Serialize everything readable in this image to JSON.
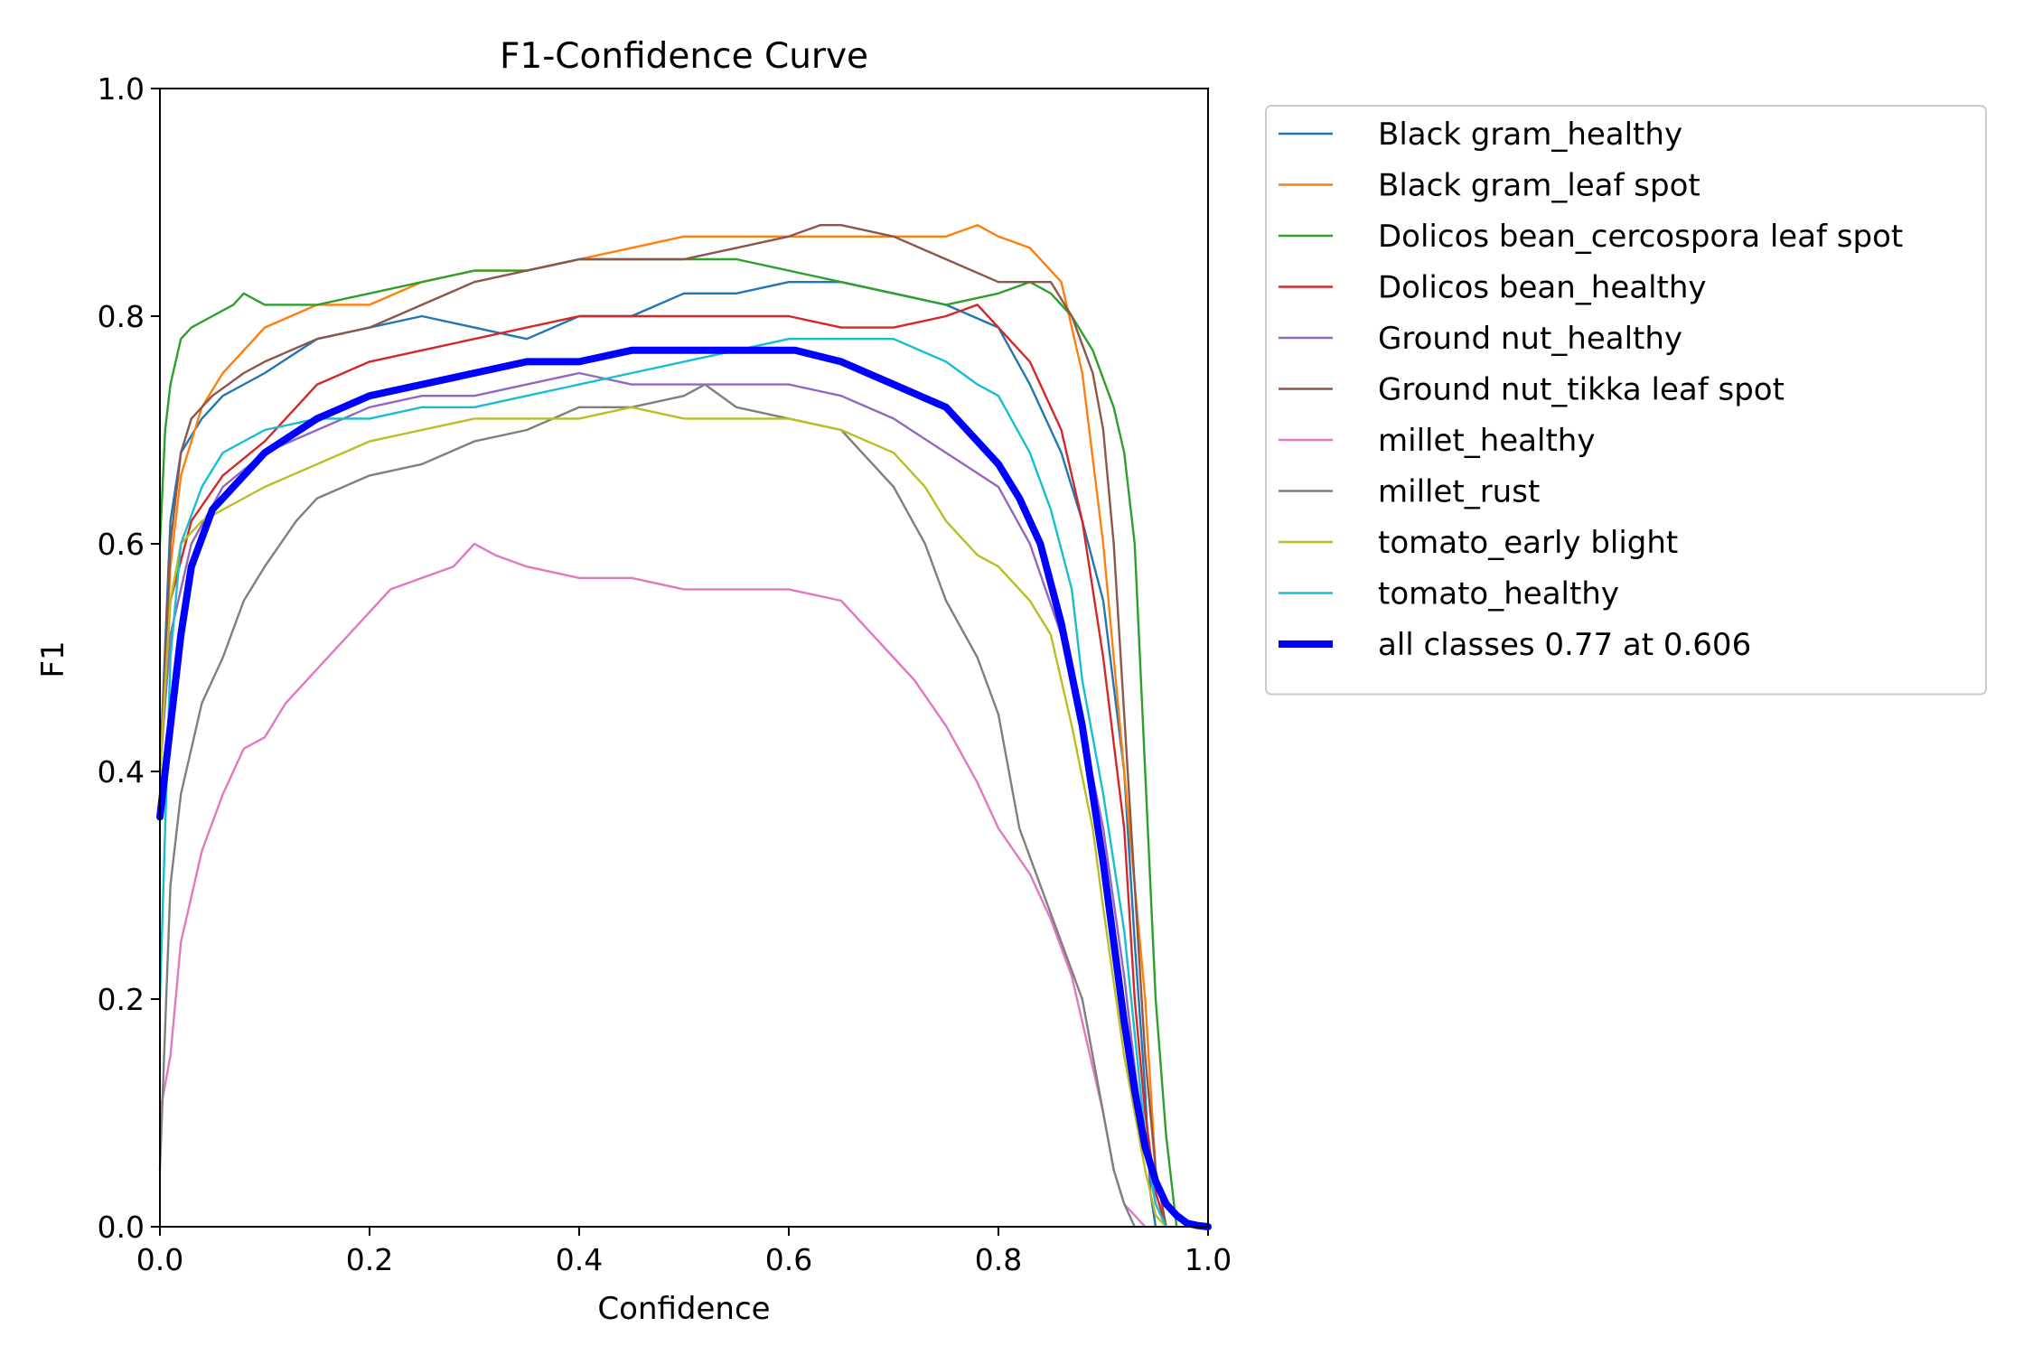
{
  "chart_data": {
    "type": "line",
    "title": "F1-Confidence Curve",
    "xlabel": "Confidence",
    "ylabel": "F1",
    "xlim": [
      0,
      1
    ],
    "ylim": [
      0,
      1
    ],
    "xticks": [
      "0.0",
      "0.2",
      "0.4",
      "0.6",
      "0.8",
      "1.0"
    ],
    "yticks": [
      "0.0",
      "0.2",
      "0.4",
      "0.6",
      "0.8",
      "1.0"
    ],
    "grid": false,
    "legend_position": "outside-right",
    "series": [
      {
        "name": "Black gram_healthy",
        "color": "#1f77b4",
        "x": [
          0,
          0.01,
          0.02,
          0.04,
          0.06,
          0.1,
          0.15,
          0.2,
          0.25,
          0.3,
          0.35,
          0.4,
          0.45,
          0.5,
          0.55,
          0.6,
          0.65,
          0.7,
          0.75,
          0.8,
          0.83,
          0.86,
          0.88,
          0.9,
          0.92,
          0.93,
          0.94,
          0.945,
          0.95
        ],
        "y": [
          0.4,
          0.62,
          0.68,
          0.71,
          0.73,
          0.75,
          0.78,
          0.79,
          0.8,
          0.79,
          0.78,
          0.8,
          0.8,
          0.82,
          0.82,
          0.83,
          0.83,
          0.82,
          0.81,
          0.79,
          0.74,
          0.68,
          0.62,
          0.55,
          0.4,
          0.25,
          0.12,
          0.03,
          0.0
        ]
      },
      {
        "name": "Black gram_leaf spot",
        "color": "#ff7f0e",
        "x": [
          0,
          0.01,
          0.02,
          0.04,
          0.06,
          0.1,
          0.15,
          0.2,
          0.25,
          0.3,
          0.35,
          0.4,
          0.45,
          0.5,
          0.55,
          0.6,
          0.65,
          0.7,
          0.75,
          0.78,
          0.8,
          0.83,
          0.86,
          0.88,
          0.9,
          0.92,
          0.94,
          0.95,
          0.96
        ],
        "y": [
          0.4,
          0.58,
          0.66,
          0.72,
          0.75,
          0.79,
          0.81,
          0.81,
          0.83,
          0.84,
          0.84,
          0.85,
          0.86,
          0.87,
          0.87,
          0.87,
          0.87,
          0.87,
          0.87,
          0.88,
          0.87,
          0.86,
          0.83,
          0.75,
          0.6,
          0.4,
          0.2,
          0.05,
          0.0
        ]
      },
      {
        "name": "Dolicos bean_cercospora leaf spot",
        "color": "#2ca02c",
        "x": [
          0,
          0.005,
          0.01,
          0.015,
          0.02,
          0.03,
          0.05,
          0.07,
          0.08,
          0.1,
          0.15,
          0.2,
          0.25,
          0.3,
          0.35,
          0.4,
          0.45,
          0.5,
          0.55,
          0.6,
          0.65,
          0.7,
          0.75,
          0.8,
          0.83,
          0.85,
          0.87,
          0.89,
          0.91,
          0.92,
          0.93,
          0.94,
          0.95,
          0.96,
          0.97
        ],
        "y": [
          0.6,
          0.7,
          0.74,
          0.76,
          0.78,
          0.79,
          0.8,
          0.81,
          0.82,
          0.81,
          0.81,
          0.82,
          0.83,
          0.84,
          0.84,
          0.85,
          0.85,
          0.85,
          0.85,
          0.84,
          0.83,
          0.82,
          0.81,
          0.82,
          0.83,
          0.82,
          0.8,
          0.77,
          0.72,
          0.68,
          0.6,
          0.4,
          0.2,
          0.08,
          0.0
        ]
      },
      {
        "name": "Dolicos bean_healthy",
        "color": "#d62728",
        "x": [
          0,
          0.01,
          0.03,
          0.06,
          0.1,
          0.13,
          0.15,
          0.2,
          0.25,
          0.3,
          0.35,
          0.4,
          0.45,
          0.5,
          0.55,
          0.6,
          0.65,
          0.7,
          0.75,
          0.78,
          0.8,
          0.83,
          0.86,
          0.88,
          0.9,
          0.92,
          0.93,
          0.94,
          0.95,
          0.96
        ],
        "y": [
          0.4,
          0.55,
          0.62,
          0.66,
          0.69,
          0.72,
          0.74,
          0.76,
          0.77,
          0.78,
          0.79,
          0.8,
          0.8,
          0.8,
          0.8,
          0.8,
          0.79,
          0.79,
          0.8,
          0.81,
          0.79,
          0.76,
          0.7,
          0.62,
          0.5,
          0.35,
          0.2,
          0.1,
          0.03,
          0.0
        ]
      },
      {
        "name": "Ground nut_healthy",
        "color": "#9467bd",
        "x": [
          0,
          0.01,
          0.03,
          0.06,
          0.1,
          0.15,
          0.2,
          0.25,
          0.3,
          0.35,
          0.4,
          0.45,
          0.5,
          0.55,
          0.6,
          0.65,
          0.7,
          0.75,
          0.8,
          0.83,
          0.86,
          0.88,
          0.9,
          0.92,
          0.93,
          0.94,
          0.95,
          0.96
        ],
        "y": [
          0.4,
          0.52,
          0.6,
          0.65,
          0.68,
          0.7,
          0.72,
          0.73,
          0.73,
          0.74,
          0.75,
          0.74,
          0.74,
          0.74,
          0.74,
          0.73,
          0.71,
          0.68,
          0.65,
          0.6,
          0.52,
          0.44,
          0.35,
          0.22,
          0.14,
          0.07,
          0.02,
          0.0
        ]
      },
      {
        "name": "Ground nut_tikka leaf spot",
        "color": "#8c564b",
        "x": [
          0,
          0.01,
          0.02,
          0.03,
          0.05,
          0.08,
          0.1,
          0.15,
          0.2,
          0.25,
          0.3,
          0.35,
          0.4,
          0.45,
          0.5,
          0.55,
          0.6,
          0.63,
          0.65,
          0.7,
          0.75,
          0.8,
          0.83,
          0.85,
          0.87,
          0.89,
          0.9,
          0.91,
          0.92,
          0.93,
          0.94,
          0.95,
          0.96
        ],
        "y": [
          0.4,
          0.6,
          0.68,
          0.71,
          0.73,
          0.75,
          0.76,
          0.78,
          0.79,
          0.81,
          0.83,
          0.84,
          0.85,
          0.85,
          0.85,
          0.86,
          0.87,
          0.88,
          0.88,
          0.87,
          0.85,
          0.83,
          0.83,
          0.83,
          0.8,
          0.75,
          0.7,
          0.6,
          0.45,
          0.3,
          0.15,
          0.05,
          0.0
        ]
      },
      {
        "name": "millet_healthy",
        "color": "#e377c2",
        "x": [
          0,
          0.01,
          0.02,
          0.04,
          0.06,
          0.08,
          0.1,
          0.12,
          0.15,
          0.18,
          0.2,
          0.22,
          0.25,
          0.28,
          0.3,
          0.32,
          0.35,
          0.4,
          0.45,
          0.5,
          0.55,
          0.6,
          0.65,
          0.68,
          0.7,
          0.72,
          0.75,
          0.78,
          0.8,
          0.83,
          0.85,
          0.87,
          0.88,
          0.89,
          0.9,
          0.91,
          0.92,
          0.93,
          0.94
        ],
        "y": [
          0.1,
          0.15,
          0.25,
          0.33,
          0.38,
          0.42,
          0.43,
          0.46,
          0.49,
          0.52,
          0.54,
          0.56,
          0.57,
          0.58,
          0.6,
          0.59,
          0.58,
          0.57,
          0.57,
          0.56,
          0.56,
          0.56,
          0.55,
          0.52,
          0.5,
          0.48,
          0.44,
          0.39,
          0.35,
          0.31,
          0.27,
          0.22,
          0.18,
          0.14,
          0.1,
          0.05,
          0.02,
          0.01,
          0.0
        ]
      },
      {
        "name": "millet_rust",
        "color": "#7f7f7f",
        "x": [
          0,
          0.01,
          0.02,
          0.04,
          0.06,
          0.08,
          0.1,
          0.13,
          0.15,
          0.2,
          0.25,
          0.3,
          0.35,
          0.4,
          0.45,
          0.5,
          0.52,
          0.55,
          0.6,
          0.65,
          0.7,
          0.73,
          0.75,
          0.78,
          0.8,
          0.82,
          0.84,
          0.86,
          0.88,
          0.9,
          0.91,
          0.92,
          0.93
        ],
        "y": [
          0.05,
          0.3,
          0.38,
          0.46,
          0.5,
          0.55,
          0.58,
          0.62,
          0.64,
          0.66,
          0.67,
          0.69,
          0.7,
          0.72,
          0.72,
          0.73,
          0.74,
          0.72,
          0.71,
          0.7,
          0.65,
          0.6,
          0.55,
          0.5,
          0.45,
          0.35,
          0.3,
          0.25,
          0.2,
          0.1,
          0.05,
          0.02,
          0.0
        ]
      },
      {
        "name": "tomato_early blight",
        "color": "#bcbd22",
        "x": [
          0,
          0.01,
          0.02,
          0.04,
          0.06,
          0.1,
          0.15,
          0.2,
          0.25,
          0.3,
          0.35,
          0.4,
          0.45,
          0.5,
          0.55,
          0.6,
          0.65,
          0.7,
          0.73,
          0.75,
          0.78,
          0.8,
          0.83,
          0.85,
          0.87,
          0.89,
          0.9,
          0.92,
          0.94,
          0.95,
          0.96
        ],
        "y": [
          0.4,
          0.55,
          0.6,
          0.62,
          0.63,
          0.65,
          0.67,
          0.69,
          0.7,
          0.71,
          0.71,
          0.71,
          0.72,
          0.71,
          0.71,
          0.71,
          0.7,
          0.68,
          0.65,
          0.62,
          0.59,
          0.58,
          0.55,
          0.52,
          0.44,
          0.35,
          0.28,
          0.15,
          0.05,
          0.01,
          0.0
        ]
      },
      {
        "name": "tomato_healthy",
        "color": "#17becf",
        "x": [
          0,
          0.01,
          0.02,
          0.04,
          0.06,
          0.1,
          0.15,
          0.2,
          0.25,
          0.3,
          0.35,
          0.4,
          0.45,
          0.5,
          0.55,
          0.6,
          0.65,
          0.7,
          0.75,
          0.78,
          0.8,
          0.83,
          0.85,
          0.87,
          0.88,
          0.9,
          0.92,
          0.93,
          0.94,
          0.95,
          0.96
        ],
        "y": [
          0.2,
          0.5,
          0.6,
          0.65,
          0.68,
          0.7,
          0.71,
          0.71,
          0.72,
          0.72,
          0.73,
          0.74,
          0.75,
          0.76,
          0.77,
          0.78,
          0.78,
          0.78,
          0.76,
          0.74,
          0.73,
          0.68,
          0.63,
          0.56,
          0.48,
          0.38,
          0.26,
          0.17,
          0.08,
          0.02,
          0.0
        ]
      },
      {
        "name": "all classes 0.77 at 0.606",
        "color": "#0000ff",
        "thick": true,
        "x": [
          0,
          0.01,
          0.02,
          0.03,
          0.05,
          0.08,
          0.1,
          0.15,
          0.2,
          0.25,
          0.3,
          0.35,
          0.4,
          0.45,
          0.5,
          0.55,
          0.606,
          0.65,
          0.7,
          0.75,
          0.78,
          0.8,
          0.82,
          0.84,
          0.86,
          0.88,
          0.9,
          0.91,
          0.92,
          0.93,
          0.94,
          0.95,
          0.96,
          0.97,
          0.98,
          0.99,
          1.0
        ],
        "y": [
          0.36,
          0.44,
          0.52,
          0.58,
          0.63,
          0.66,
          0.68,
          0.71,
          0.73,
          0.74,
          0.75,
          0.76,
          0.76,
          0.77,
          0.77,
          0.77,
          0.77,
          0.76,
          0.74,
          0.72,
          0.69,
          0.67,
          0.64,
          0.6,
          0.53,
          0.44,
          0.32,
          0.25,
          0.18,
          0.12,
          0.07,
          0.04,
          0.02,
          0.01,
          0.003,
          0.001,
          0.0
        ]
      }
    ]
  }
}
